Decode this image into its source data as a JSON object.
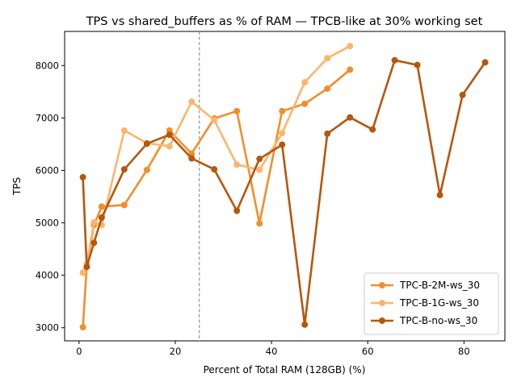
{
  "chart_data": {
    "type": "line",
    "title": "TPS vs shared_buffers as % of RAM — TPCB-like at 30% working set",
    "xlabel": "Percent of Total RAM (128GB) (%)",
    "ylabel": "TPS",
    "xlim": [
      -3,
      88.5
    ],
    "ylim": [
      2750,
      8650
    ],
    "xticks": [
      0,
      20,
      40,
      60,
      80
    ],
    "yticks": [
      3000,
      4000,
      5000,
      6000,
      7000,
      8000
    ],
    "xtick_labels": [
      "0",
      "20",
      "40",
      "60",
      "80"
    ],
    "ytick_labels": [
      "3000",
      "4000",
      "5000",
      "6000",
      "7000",
      "8000"
    ],
    "reference_line": {
      "x": 25,
      "style": "dashed",
      "color": "#7f7f7f"
    },
    "legend_position": "lower-right",
    "grid": false,
    "series": [
      {
        "name": "TPC-B-2M-ws_30",
        "color": "#f28e2b",
        "x": [
          0.8,
          1.6,
          3.1,
          4.7,
          9.4,
          14.1,
          18.8,
          23.4,
          28.1,
          32.8,
          37.5,
          42.2,
          46.9,
          51.6,
          56.3
        ],
        "y": [
          3010,
          4170,
          4960,
          5310,
          5340,
          6010,
          6760,
          6320,
          6990,
          7130,
          4990,
          7130,
          7270,
          7560,
          7920
        ]
      },
      {
        "name": "TPC-B-1G-ws_30",
        "color": "#fdb56d",
        "x": [
          0.8,
          1.6,
          3.1,
          4.7,
          9.4,
          14.1,
          18.8,
          23.4,
          28.1,
          32.8,
          37.5,
          42.2,
          46.9,
          51.6,
          56.3
        ],
        "y": [
          4050,
          4210,
          5010,
          4960,
          6760,
          6520,
          6460,
          7310,
          6960,
          6110,
          6010,
          6710,
          7680,
          8140,
          8370
        ]
      },
      {
        "name": "TPC-B-no-ws_30",
        "color": "#b5570e",
        "x": [
          0.8,
          1.6,
          3.1,
          4.7,
          9.4,
          14.1,
          18.8,
          23.4,
          28.1,
          32.8,
          37.5,
          42.2,
          46.9,
          51.6,
          56.3,
          61.0,
          65.6,
          70.3,
          75.0,
          79.7,
          84.4
        ],
        "y": [
          5870,
          4160,
          4620,
          5100,
          6020,
          6510,
          6680,
          6230,
          6020,
          5230,
          6220,
          6490,
          3060,
          6700,
          7010,
          6780,
          8100,
          8010,
          5530,
          7440,
          8060
        ]
      }
    ]
  }
}
